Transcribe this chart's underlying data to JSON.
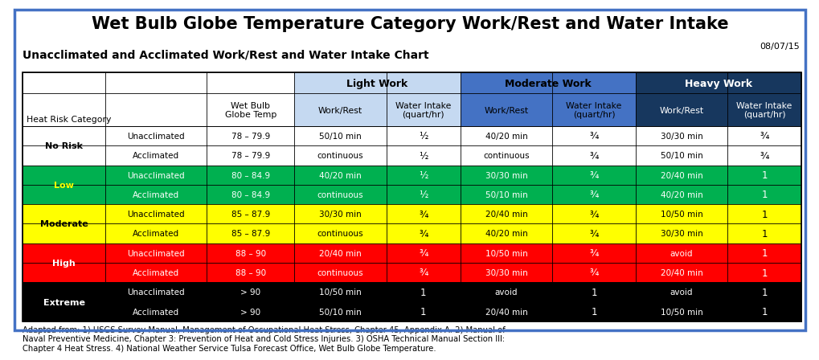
{
  "title": "Wet Bulb Globe Temperature Category Work/Rest and Water Intake",
  "date": "08/07/15",
  "subtitle": "Unacclimated and Acclimated Work/Rest and Water Intake Chart",
  "footnote": "Adapted from: 1) USGS Survey Manual, Management of Occupational Heat Stress, Chapter 45, Appendix A. 2) Manual of\nNaval Preventive Medicine, Chapter 3: Prevention of Heat and Cold Stress Injuries. 3) OSHA Technical Manual Section III:\nChapter 4 Heat Stress. 4) National Weather Service Tulsa Forecast Office, Wet Bulb Globe Temperature.",
  "col_headers_row2": [
    "Heat Risk Category",
    "Wet Bulb\nGlobe Temp",
    "Work/Rest",
    "Water Intake\n(quart/hr)",
    "Work/Rest",
    "Water Intake\n(quart/hr)",
    "Work/Rest",
    "Water Intake\n(quart/hr)"
  ],
  "light_work_color": "#c5d9f1",
  "moderate_work_color": "#4472c4",
  "heavy_work_color": "#17375e",
  "rows": [
    {
      "category": "No Risk",
      "acclimation": "Unacclimated",
      "wet_bulb": "78 – 79.9",
      "lw_work_rest": "50/10 min",
      "lw_water": "½",
      "mw_work_rest": "40/20 min",
      "mw_water": "¾",
      "hw_work_rest": "30/30 min",
      "hw_water": "¾",
      "row_color": "#ffffff",
      "text_color": "#000000",
      "cat_text_color": "#000000"
    },
    {
      "category": "",
      "acclimation": "Acclimated",
      "wet_bulb": "78 – 79.9",
      "lw_work_rest": "continuous",
      "lw_water": "½",
      "mw_work_rest": "continuous",
      "mw_water": "¾",
      "hw_work_rest": "50/10 min",
      "hw_water": "¾",
      "row_color": "#ffffff",
      "text_color": "#000000",
      "cat_text_color": "#000000"
    },
    {
      "category": "Low",
      "acclimation": "Unacclimated",
      "wet_bulb": "80 – 84.9",
      "lw_work_rest": "40/20 min",
      "lw_water": "½",
      "mw_work_rest": "30/30 min",
      "mw_water": "¾",
      "hw_work_rest": "20/40 min",
      "hw_water": "1",
      "row_color": "#00b050",
      "text_color": "#ffffff",
      "cat_text_color": "#ffff00"
    },
    {
      "category": "",
      "acclimation": "Acclimated",
      "wet_bulb": "80 – 84.9",
      "lw_work_rest": "continuous",
      "lw_water": "½",
      "mw_work_rest": "50/10 min",
      "mw_water": "¾",
      "hw_work_rest": "40/20 min",
      "hw_water": "1",
      "row_color": "#00b050",
      "text_color": "#ffffff",
      "cat_text_color": "#ffff00"
    },
    {
      "category": "Moderate",
      "acclimation": "Unacclimated",
      "wet_bulb": "85 – 87.9",
      "lw_work_rest": "30/30 min",
      "lw_water": "¾",
      "mw_work_rest": "20/40 min",
      "mw_water": "¾",
      "hw_work_rest": "10/50 min",
      "hw_water": "1",
      "row_color": "#ffff00",
      "text_color": "#000000",
      "cat_text_color": "#000000"
    },
    {
      "category": "",
      "acclimation": "Acclimated",
      "wet_bulb": "85 – 87.9",
      "lw_work_rest": "continuous",
      "lw_water": "¾",
      "mw_work_rest": "40/20 min",
      "mw_water": "¾",
      "hw_work_rest": "30/30 min",
      "hw_water": "1",
      "row_color": "#ffff00",
      "text_color": "#000000",
      "cat_text_color": "#000000"
    },
    {
      "category": "High",
      "acclimation": "Unacclimated",
      "wet_bulb": "88 – 90",
      "lw_work_rest": "20/40 min",
      "lw_water": "¾",
      "mw_work_rest": "10/50 min",
      "mw_water": "¾",
      "hw_work_rest": "avoid",
      "hw_water": "1",
      "row_color": "#ff0000",
      "text_color": "#ffffff",
      "cat_text_color": "#ffffff"
    },
    {
      "category": "",
      "acclimation": "Acclimated",
      "wet_bulb": "88 – 90",
      "lw_work_rest": "continuous",
      "lw_water": "¾",
      "mw_work_rest": "30/30 min",
      "mw_water": "¾",
      "hw_work_rest": "20/40 min",
      "hw_water": "1",
      "row_color": "#ff0000",
      "text_color": "#ffffff",
      "cat_text_color": "#ffffff"
    },
    {
      "category": "Extreme",
      "acclimation": "Unacclimated",
      "wet_bulb": "> 90",
      "lw_work_rest": "10/50 min",
      "lw_water": "1",
      "mw_work_rest": "avoid",
      "mw_water": "1",
      "hw_work_rest": "avoid",
      "hw_water": "1",
      "row_color": "#000000",
      "text_color": "#ffffff",
      "cat_text_color": "#ffffff"
    },
    {
      "category": "",
      "acclimation": "Acclimated",
      "wet_bulb": "> 90",
      "lw_work_rest": "50/10 min",
      "lw_water": "1",
      "mw_work_rest": "20/40 min",
      "mw_water": "1",
      "hw_work_rest": "10/50 min",
      "hw_water": "1",
      "row_color": "#000000",
      "text_color": "#ffffff",
      "cat_text_color": "#ffffff"
    }
  ],
  "figure_bg": "#ffffff",
  "outer_border_color": "#4472c4"
}
